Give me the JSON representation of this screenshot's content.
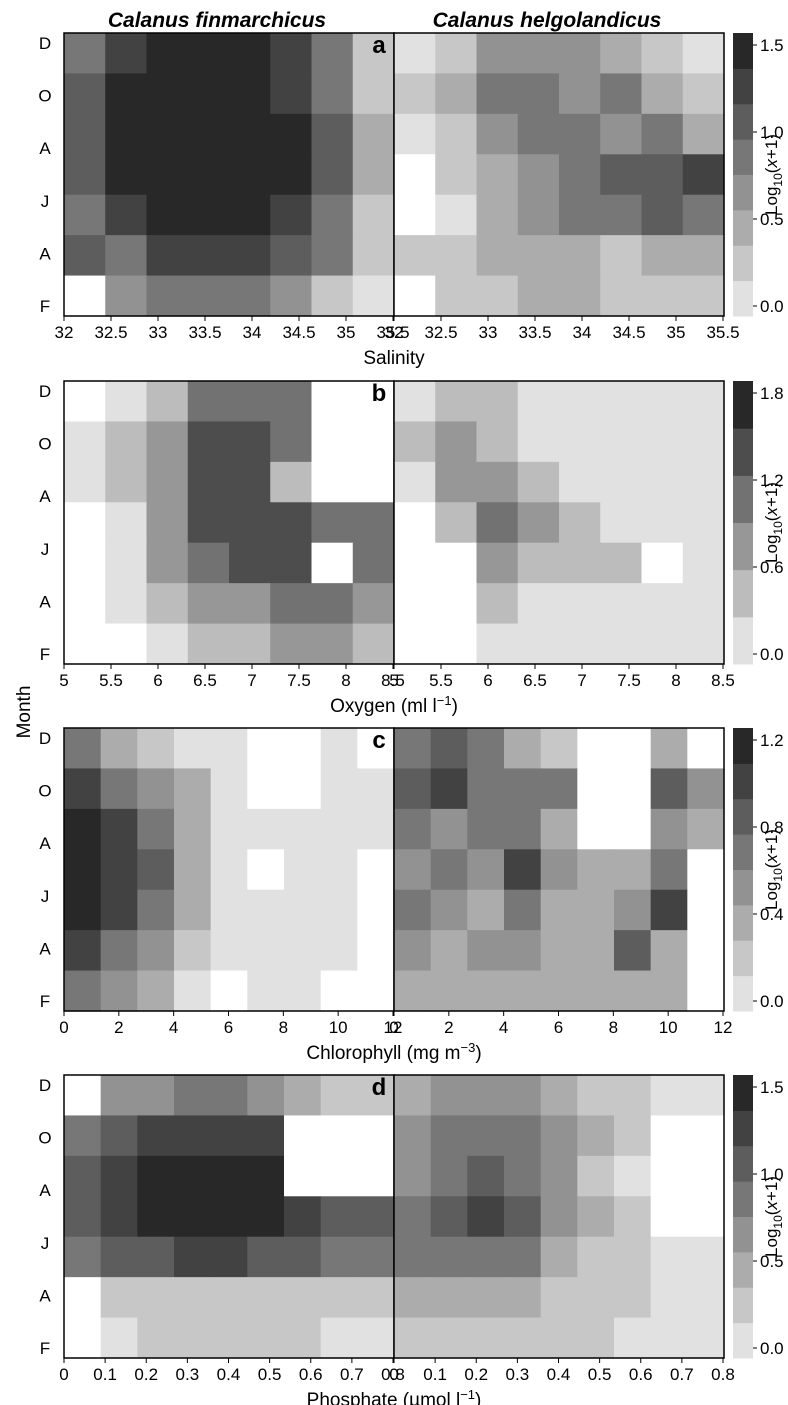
{
  "figure": {
    "column_titles": [
      "Calanus finmarchicus",
      "Calanus helgolandicus"
    ],
    "y_axis_label": "Month",
    "month_ticks": [
      "D",
      "O",
      "A",
      "J",
      "A",
      "F"
    ],
    "colorbar_label_base": "Log",
    "colorbar_label_sub": "10",
    "colorbar_label_rest_open": "(",
    "colorbar_label_x": "x",
    "colorbar_label_rest_close": "+1)"
  },
  "chart_data": [
    {
      "type": "heatmap",
      "panel": "a",
      "xlabel_main": "Salinity",
      "xlabel_sup": "",
      "xlabel_tail": "",
      "x_ticks": [
        "32",
        "32.5",
        "33",
        "33.5",
        "34",
        "34.5",
        "35",
        "35.5"
      ],
      "xlim": [
        32,
        35.5
      ],
      "colorbar_ticks": [
        "1.5",
        "1.0",
        "0.5",
        "0.0"
      ],
      "colorbar_range": [
        0,
        1.5
      ],
      "colorbar_levels": 8,
      "series": [
        {
          "name": "Calanus finmarchicus",
          "z": [
            [
              0.9,
              1.2,
              1.4,
              1.5,
              1.4,
              1.2,
              0.8,
              0.2
            ],
            [
              1.0,
              1.4,
              1.5,
              1.5,
              1.4,
              1.3,
              0.8,
              0.3
            ],
            [
              1.1,
              1.5,
              1.5,
              1.5,
              1.5,
              1.4,
              1.0,
              0.4
            ],
            [
              1.0,
              1.4,
              1.5,
              1.5,
              1.5,
              1.5,
              1.0,
              0.4
            ],
            [
              0.9,
              1.2,
              1.4,
              1.5,
              1.4,
              1.3,
              0.9,
              0.3
            ],
            [
              1.0,
              0.8,
              1.2,
              1.2,
              1.2,
              1.0,
              0.8,
              0.3
            ],
            [
              0.0,
              0.6,
              0.9,
              0.9,
              0.8,
              0.6,
              0.3,
              0.1
            ]
          ]
        },
        {
          "name": "Calanus helgolandicus",
          "z": [
            [
              0.1,
              0.3,
              0.6,
              0.7,
              0.6,
              0.4,
              0.3,
              0.1
            ],
            [
              0.2,
              0.5,
              0.8,
              0.8,
              0.7,
              0.8,
              0.5,
              0.2
            ],
            [
              0.1,
              0.2,
              0.6,
              0.9,
              0.9,
              0.7,
              0.8,
              0.5
            ],
            [
              0.0,
              0.2,
              0.5,
              0.7,
              0.8,
              1.0,
              1.1,
              1.2
            ],
            [
              0.0,
              0.1,
              0.4,
              0.6,
              0.8,
              0.9,
              1.0,
              0.9
            ],
            [
              0.2,
              0.3,
              0.4,
              0.5,
              0.5,
              0.3,
              0.4,
              0.4
            ],
            [
              0.0,
              0.3,
              0.3,
              0.4,
              0.4,
              0.3,
              0.3,
              0.2
            ]
          ]
        }
      ]
    },
    {
      "type": "heatmap",
      "panel": "b",
      "xlabel_main": "Oxygen (ml l",
      "xlabel_sup": "−1",
      "xlabel_tail": ")",
      "x_ticks": [
        "5",
        "5.5",
        "6",
        "6.5",
        "7",
        "7.5",
        "8",
        "8.5"
      ],
      "xlim": [
        5,
        8.5
      ],
      "colorbar_ticks": [
        "1.8",
        "1.2",
        "0.6",
        "0.0"
      ],
      "colorbar_range": [
        0,
        1.8
      ],
      "colorbar_levels": 6,
      "series": [
        {
          "name": "Calanus finmarchicus",
          "z": [
            [
              0.0,
              0.2,
              0.5,
              0.9,
              1.0,
              0.9,
              0.0,
              0.0
            ],
            [
              0.1,
              0.3,
              0.7,
              1.2,
              1.3,
              1.1,
              0.0,
              0.0
            ],
            [
              0.2,
              0.3,
              0.8,
              1.4,
              1.3,
              0.4,
              0.0,
              0.0
            ],
            [
              0.0,
              0.2,
              0.7,
              1.3,
              1.4,
              1.2,
              1.0,
              1.0
            ],
            [
              0.0,
              0.2,
              0.6,
              1.1,
              1.3,
              1.2,
              0.0,
              1.1
            ],
            [
              0.0,
              0.1,
              0.3,
              0.6,
              0.8,
              1.0,
              1.0,
              0.8
            ],
            [
              0.0,
              0.0,
              0.2,
              0.3,
              0.5,
              0.6,
              0.6,
              0.5
            ]
          ]
        },
        {
          "name": "Calanus helgolandicus",
          "z": [
            [
              0.2,
              0.4,
              0.3,
              0.2,
              0.1,
              0.1,
              0.1,
              0.1
            ],
            [
              0.4,
              0.6,
              0.4,
              0.2,
              0.1,
              0.2,
              0.1,
              0.1
            ],
            [
              0.2,
              0.7,
              0.6,
              0.3,
              0.2,
              0.1,
              0.1,
              0.1
            ],
            [
              0.0,
              0.3,
              0.9,
              0.8,
              0.3,
              0.2,
              0.1,
              0.1
            ],
            [
              0.0,
              0.0,
              0.7,
              0.5,
              0.4,
              0.3,
              0.0,
              0.1
            ],
            [
              0.0,
              0.0,
              0.3,
              0.2,
              0.2,
              0.1,
              0.1,
              0.1
            ],
            [
              0.0,
              0.0,
              0.2,
              0.1,
              0.1,
              0.1,
              0.1,
              0.1
            ]
          ]
        }
      ]
    },
    {
      "type": "heatmap",
      "panel": "c",
      "xlabel_main": "Chlorophyll (mg m",
      "xlabel_sup": "−3",
      "xlabel_tail": ")",
      "x_ticks": [
        "0",
        "2",
        "4",
        "6",
        "8",
        "10",
        "12"
      ],
      "xlim": [
        0,
        12
      ],
      "colorbar_ticks": [
        "1.2",
        "0.8",
        "0.4",
        "0.0"
      ],
      "colorbar_range": [
        0,
        1.2
      ],
      "colorbar_levels": 8,
      "series": [
        {
          "name": "Calanus finmarchicus",
          "z": [
            [
              0.6,
              0.4,
              0.2,
              0.1,
              0.1,
              0.0,
              0.0,
              0.1,
              0.0
            ],
            [
              0.9,
              0.7,
              0.5,
              0.3,
              0.1,
              0.0,
              0.0,
              0.1,
              0.1
            ],
            [
              1.1,
              0.9,
              0.6,
              0.3,
              0.1,
              0.1,
              0.1,
              0.1,
              0.1
            ],
            [
              1.2,
              1.0,
              0.8,
              0.3,
              0.1,
              0.0,
              0.1,
              0.1,
              0.0
            ],
            [
              1.1,
              0.9,
              0.7,
              0.3,
              0.1,
              0.1,
              0.1,
              0.1,
              0.0
            ],
            [
              0.9,
              0.7,
              0.5,
              0.2,
              0.1,
              0.1,
              0.1,
              0.1,
              0.0
            ],
            [
              0.7,
              0.5,
              0.3,
              0.1,
              0.0,
              0.1,
              0.1,
              0.0,
              0.0
            ]
          ]
        },
        {
          "name": "Calanus helgolandicus",
          "z": [
            [
              0.7,
              0.8,
              0.6,
              0.4,
              0.2,
              0.0,
              0.0,
              0.3,
              0.0
            ],
            [
              0.8,
              0.9,
              0.6,
              0.7,
              0.6,
              0.0,
              0.0,
              0.8,
              0.5
            ],
            [
              0.6,
              0.5,
              0.6,
              0.6,
              0.3,
              0.0,
              0.0,
              0.5,
              0.3
            ],
            [
              0.5,
              0.6,
              0.5,
              0.9,
              0.5,
              0.4,
              0.3,
              0.6,
              0.0
            ],
            [
              0.6,
              0.5,
              0.4,
              0.6,
              0.4,
              0.3,
              0.5,
              0.9,
              0.0
            ],
            [
              0.5,
              0.4,
              0.5,
              0.5,
              0.4,
              0.4,
              0.8,
              0.4,
              0.0
            ],
            [
              0.4,
              0.3,
              0.4,
              0.3,
              0.3,
              0.3,
              0.4,
              0.3,
              0.0
            ]
          ]
        }
      ]
    },
    {
      "type": "heatmap",
      "panel": "d",
      "xlabel_main": "Phosphate (µmol l",
      "xlabel_sup": "−1",
      "xlabel_tail": ")",
      "x_ticks": [
        "0",
        "0.1",
        "0.2",
        "0.3",
        "0.4",
        "0.5",
        "0.6",
        "0.7",
        "0.8"
      ],
      "xlim": [
        0,
        0.8
      ],
      "colorbar_ticks": [
        "1.5",
        "1.0",
        "0.5",
        "0.0"
      ],
      "colorbar_range": [
        0,
        1.5
      ],
      "colorbar_levels": 8,
      "series": [
        {
          "name": "Calanus finmarchicus",
          "z": [
            [
              0.0,
              0.6,
              0.7,
              0.8,
              0.8,
              0.7,
              0.5,
              0.3,
              0.2
            ],
            [
              0.8,
              1.0,
              1.2,
              1.3,
              1.3,
              1.2,
              0.0,
              0.0,
              0.0
            ],
            [
              1.0,
              1.2,
              1.4,
              1.5,
              1.5,
              1.4,
              0.0,
              0.0,
              0.0
            ],
            [
              1.1,
              1.3,
              1.5,
              1.5,
              1.5,
              1.4,
              1.2,
              1.1,
              1.0
            ],
            [
              0.9,
              1.0,
              1.1,
              1.2,
              1.2,
              1.1,
              1.0,
              0.9,
              0.8
            ],
            [
              0.0,
              0.2,
              0.3,
              0.3,
              0.3,
              0.3,
              0.2,
              0.2,
              0.2
            ],
            [
              0.0,
              0.1,
              0.2,
              0.2,
              0.2,
              0.2,
              0.2,
              0.1,
              0.1
            ]
          ]
        },
        {
          "name": "Calanus helgolandicus",
          "z": [
            [
              0.5,
              0.6,
              0.7,
              0.6,
              0.5,
              0.3,
              0.2,
              0.1,
              0.1
            ],
            [
              0.6,
              0.8,
              0.9,
              0.8,
              0.6,
              0.4,
              0.2,
              0.0,
              0.0
            ],
            [
              0.7,
              0.9,
              1.0,
              0.9,
              0.6,
              0.3,
              0.1,
              0.0,
              0.0
            ],
            [
              0.8,
              1.1,
              1.3,
              1.0,
              0.6,
              0.4,
              0.2,
              0.0,
              0.0
            ],
            [
              0.9,
              0.9,
              0.9,
              0.8,
              0.5,
              0.3,
              0.2,
              0.1,
              0.1
            ],
            [
              0.4,
              0.5,
              0.5,
              0.4,
              0.3,
              0.2,
              0.2,
              0.1,
              0.1
            ],
            [
              0.2,
              0.3,
              0.3,
              0.2,
              0.2,
              0.2,
              0.1,
              0.1,
              0.1
            ]
          ]
        }
      ]
    }
  ]
}
